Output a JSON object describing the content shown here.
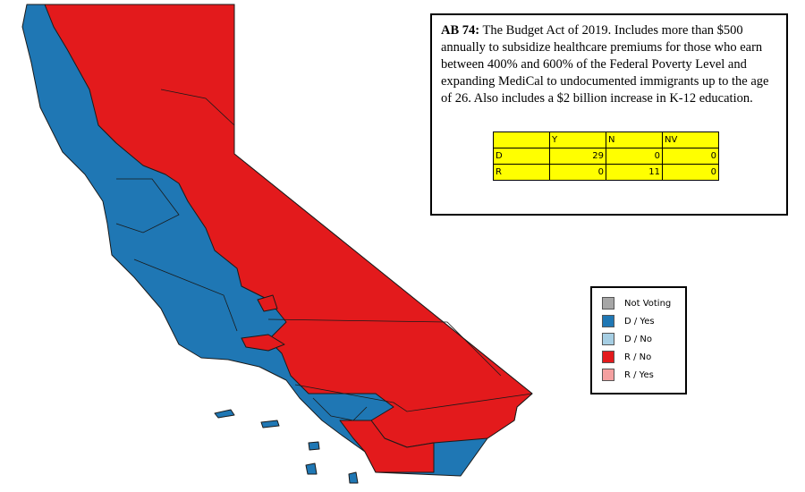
{
  "description": {
    "label": "AB 74:",
    "text": "The Budget Act of 2019.  Includes more than $500 annually to subsidize healthcare premiums for those who earn between 400% and 600% of the Federal Poverty Level and expanding MediCal to undocumented immigrants up to the age of 26.  Also includes a $2 billion increase in K-12 education."
  },
  "table": {
    "columns": [
      "Y",
      "N",
      "NV"
    ],
    "rows": [
      [
        "D",
        "29",
        "0",
        "0"
      ],
      [
        "R",
        "0",
        "11",
        "0"
      ]
    ]
  },
  "legend": [
    {
      "label": "Not Voting",
      "color": "#a6a6a6"
    },
    {
      "label": "D / Yes",
      "color": "#1f77b4"
    },
    {
      "label": "D / No",
      "color": "#a6cee3"
    },
    {
      "label": "R / No",
      "color": "#e31a1c"
    },
    {
      "label": "R / Yes",
      "color": "#f4a0a0"
    }
  ]
}
